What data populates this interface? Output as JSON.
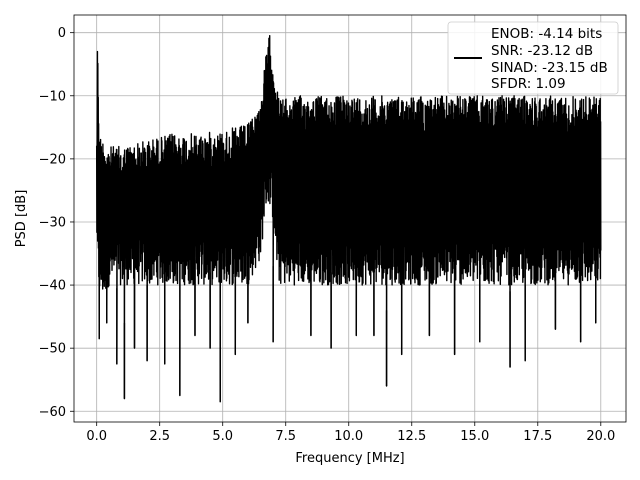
{
  "chart_data": {
    "type": "line",
    "title": "",
    "xlabel": "Frequency [MHz]",
    "ylabel": "PSD [dB]",
    "xlim": [
      -0.9,
      21.0
    ],
    "ylim": [
      -61.7,
      2.8
    ],
    "xticks": [
      0.0,
      2.5,
      5.0,
      7.5,
      10.0,
      12.5,
      15.0,
      17.5,
      20.0
    ],
    "xtick_labels": [
      "0.0",
      "2.5",
      "5.0",
      "7.5",
      "10.0",
      "12.5",
      "15.0",
      "17.5",
      "20.0"
    ],
    "yticks": [
      0,
      -10,
      -20,
      -30,
      -40,
      -50,
      -60
    ],
    "ytick_labels": [
      "0",
      "−10",
      "−20",
      "−30",
      "−40",
      "−50",
      "−60"
    ],
    "grid": true,
    "legend_position": "top-right",
    "legend": [
      "ENOB: -4.14 bits",
      "SNR: -23.12 dB",
      "SINAD: -23.15 dB",
      "SFDR: 1.09"
    ],
    "series": [
      {
        "color": "#000000",
        "envelope": {
          "x": [
            0.0,
            0.05,
            0.1,
            0.3,
            0.5,
            1.0,
            2.0,
            3.0,
            4.0,
            5.0,
            6.0,
            6.5,
            6.7,
            6.85,
            7.0,
            7.2,
            7.5,
            8.0,
            9.0,
            10.0,
            11.0,
            12.0,
            13.0,
            14.0,
            15.0,
            16.0,
            17.0,
            18.0,
            19.0,
            20.0
          ],
          "upper": [
            -14,
            -3,
            -16,
            -17,
            -18,
            -18,
            -17,
            -16,
            -16,
            -15.5,
            -14.5,
            -11,
            -4,
            0,
            -4,
            -10,
            -10.5,
            -10,
            -10,
            -10,
            -10,
            -10,
            -10,
            -10,
            -10,
            -10,
            -10,
            -10,
            -10,
            -10
          ],
          "typical_low": [
            -33,
            -40,
            -42,
            -42,
            -40,
            -40,
            -40,
            -40,
            -40,
            -40,
            -40,
            -36,
            -28,
            -27,
            -30,
            -40,
            -40,
            -40,
            -40,
            -40,
            -40,
            -40,
            -40,
            -40,
            -40,
            -40,
            -40,
            -40,
            -40,
            -40
          ]
        },
        "dips": [
          {
            "x": 0.1,
            "y": -48.5
          },
          {
            "x": 0.4,
            "y": -46
          },
          {
            "x": 0.8,
            "y": -52.5
          },
          {
            "x": 1.1,
            "y": -58
          },
          {
            "x": 1.5,
            "y": -50
          },
          {
            "x": 2.0,
            "y": -52
          },
          {
            "x": 2.7,
            "y": -52.5
          },
          {
            "x": 3.3,
            "y": -57.5
          },
          {
            "x": 3.9,
            "y": -48
          },
          {
            "x": 4.5,
            "y": -50
          },
          {
            "x": 4.9,
            "y": -58.5
          },
          {
            "x": 5.5,
            "y": -51
          },
          {
            "x": 6.0,
            "y": -46
          },
          {
            "x": 7.0,
            "y": -49
          },
          {
            "x": 8.5,
            "y": -48
          },
          {
            "x": 9.3,
            "y": -50
          },
          {
            "x": 10.3,
            "y": -48
          },
          {
            "x": 11.0,
            "y": -48
          },
          {
            "x": 11.5,
            "y": -56
          },
          {
            "x": 12.1,
            "y": -51
          },
          {
            "x": 13.2,
            "y": -48
          },
          {
            "x": 14.2,
            "y": -51
          },
          {
            "x": 15.2,
            "y": -49
          },
          {
            "x": 16.4,
            "y": -53
          },
          {
            "x": 17.0,
            "y": -52
          },
          {
            "x": 18.2,
            "y": -47
          },
          {
            "x": 19.2,
            "y": -49
          },
          {
            "x": 19.8,
            "y": -46
          }
        ]
      }
    ]
  }
}
